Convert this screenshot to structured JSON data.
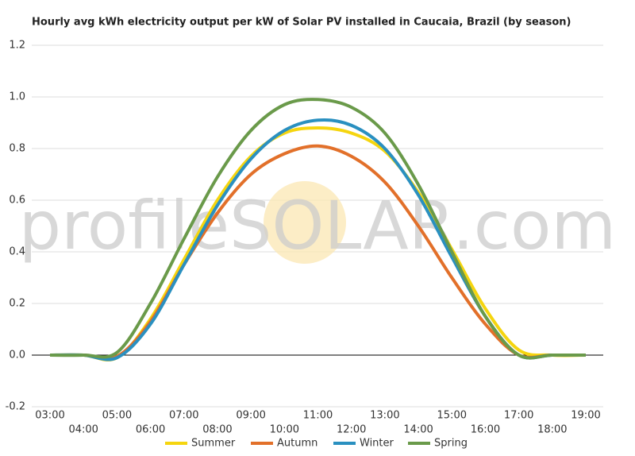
{
  "chart_data": {
    "type": "line",
    "title": "Hourly avg kWh electricity output per kW of Solar PV installed in Caucaia, Brazil (by season)",
    "watermark": "profileSOLAR.com",
    "categories": [
      "03:00",
      "04:00",
      "05:00",
      "06:00",
      "07:00",
      "08:00",
      "09:00",
      "10:00",
      "11:00",
      "12:00",
      "13:00",
      "14:00",
      "15:00",
      "16:00",
      "17:00",
      "18:00",
      "19:00"
    ],
    "series": [
      {
        "name": "Summer",
        "color": "#f5d50f",
        "values": [
          0,
          0,
          -0.01,
          0.14,
          0.37,
          0.6,
          0.77,
          0.86,
          0.88,
          0.86,
          0.79,
          0.63,
          0.41,
          0.18,
          0.02,
          0,
          0
        ]
      },
      {
        "name": "Autumn",
        "color": "#e2702a",
        "values": [
          0,
          0,
          -0.005,
          0.13,
          0.35,
          0.55,
          0.7,
          0.78,
          0.81,
          0.77,
          0.67,
          0.5,
          0.3,
          0.12,
          0,
          0,
          0
        ]
      },
      {
        "name": "Winter",
        "color": "#2a90c0",
        "values": [
          0,
          0,
          -0.01,
          0.12,
          0.35,
          0.58,
          0.76,
          0.87,
          0.91,
          0.89,
          0.8,
          0.62,
          0.38,
          0.15,
          0,
          0,
          0
        ]
      },
      {
        "name": "Spring",
        "color": "#6a9a4a",
        "values": [
          0,
          0,
          0.01,
          0.2,
          0.45,
          0.69,
          0.87,
          0.97,
          0.99,
          0.96,
          0.86,
          0.66,
          0.4,
          0.15,
          0,
          0,
          0
        ]
      }
    ],
    "ylim": [
      -0.2,
      1.2
    ],
    "yticks": [
      -0.2,
      {
        "value": 0,
        "label": "0.0"
      },
      0.2,
      0.4,
      0.6,
      0.8,
      {
        "value": 1,
        "label": "1.0"
      },
      1.2
    ],
    "grid": true,
    "legend": "bottom"
  }
}
